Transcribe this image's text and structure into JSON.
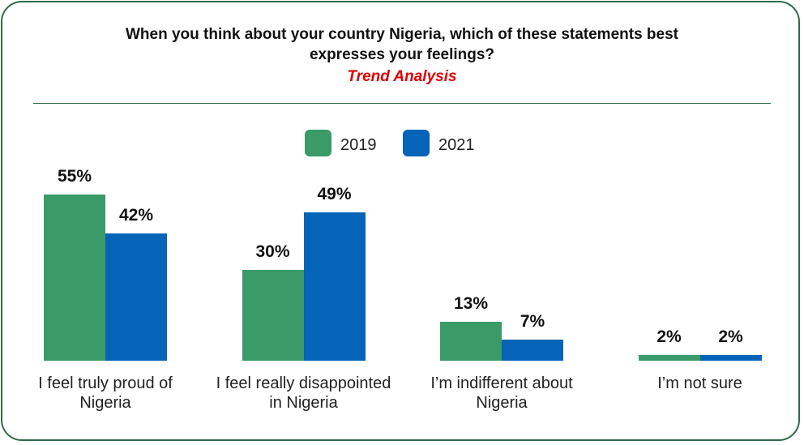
{
  "chart_data": {
    "type": "bar",
    "title": "When you think about your country Nigeria, which of these statements best expresses your feelings?",
    "subtitle": "Trend Analysis",
    "categories": [
      "I feel truly proud of Nigeria",
      "I feel really disappointed in Nigeria",
      "I’m indifferent about Nigeria",
      "I’m not sure"
    ],
    "series": [
      {
        "name": "2019",
        "color": "#3a9a68",
        "values": [
          55,
          30,
          13,
          2
        ],
        "value_labels": [
          "55%",
          "30%",
          "13%",
          "2%"
        ]
      },
      {
        "name": "2021",
        "color": "#0563b8",
        "values": [
          42,
          49,
          7,
          2
        ],
        "value_labels": [
          "42%",
          "49%",
          "7%",
          "2%"
        ]
      }
    ]
  }
}
